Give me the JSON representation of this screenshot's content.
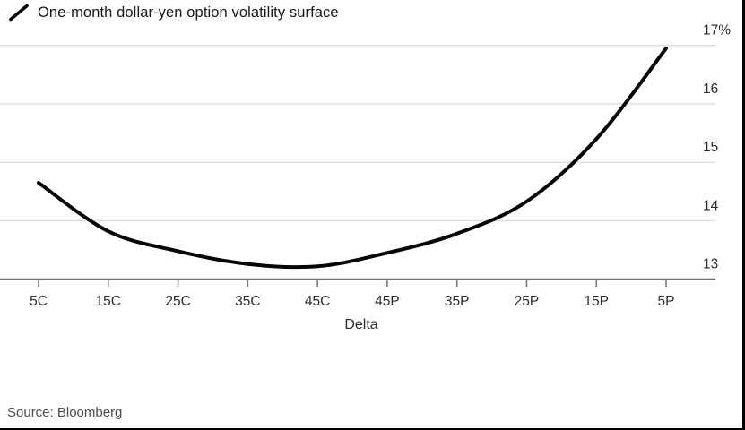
{
  "header": {
    "title": "One-month dollar-yen option volatility surface",
    "legend_marker": "diagonal-line-icon"
  },
  "chart_data": {
    "type": "line",
    "title": "One-month dollar-yen option volatility surface",
    "categories": [
      "5C",
      "15C",
      "25C",
      "35C",
      "45C",
      "45P",
      "35P",
      "25P",
      "15P",
      "5P"
    ],
    "series": [
      {
        "name": "One-month dollar-yen option volatility surface",
        "values": [
          14.65,
          13.82,
          13.48,
          13.26,
          13.22,
          13.45,
          13.78,
          14.33,
          15.4,
          16.95
        ]
      }
    ],
    "xlabel": "Delta",
    "ylabel": "",
    "y_ticks": [
      13,
      14,
      15,
      16,
      17
    ],
    "y_tick_labels": [
      "13",
      "14",
      "15",
      "16",
      "17%"
    ],
    "ylim": [
      13,
      17
    ],
    "grid": "horizontal-light-gray",
    "legend_position": "top-left",
    "line_color": "#050505"
  },
  "footer": {
    "source_label": "Source: Bloomberg"
  },
  "colors": {
    "background": "#ffffff",
    "line": "#050505",
    "gridline": "#dcdcdc",
    "axis": "#6f6f6f",
    "tick_label": "#2b2b2b",
    "title_text": "#161616",
    "source_text": "#4d4d4d",
    "border": "#000000"
  }
}
